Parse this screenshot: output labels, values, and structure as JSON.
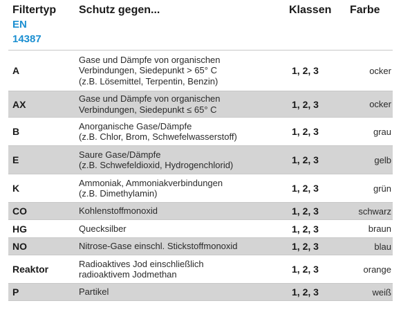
{
  "header": {
    "type": "Filtertyp",
    "standard_line1": "EN",
    "standard_line2": "14387",
    "protect": "Schutz gegen...",
    "classes": "Klassen",
    "color": "Farbe"
  },
  "rows": [
    {
      "type": "A",
      "protect": "Gase und Dämpfe von organischen\nVerbindungen, Siedepunkt > 65° C\n(z.B. Lösemittel, Terpentin, Benzin)",
      "classes": "1, 2, 3",
      "color": "ocker"
    },
    {
      "type": "AX",
      "protect": "Gase und Dämpfe von organischen\nVerbindungen, Siedepunkt ≤ 65° C",
      "classes": "1, 2, 3",
      "color": "ocker"
    },
    {
      "type": "B",
      "protect": "Anorganische Gase/Dämpfe\n(z.B. Chlor, Brom, Schwefelwasserstoff)",
      "classes": "1, 2, 3",
      "color": "grau"
    },
    {
      "type": "E",
      "protect": "Saure Gase/Dämpfe\n(z.B. Schwefeldioxid, Hydrogenchlorid)",
      "classes": "1, 2, 3",
      "color": "gelb"
    },
    {
      "type": "K",
      "protect": "Ammoniak, Ammoniakverbindungen\n(z.B. Dimethylamin)",
      "classes": "1, 2, 3",
      "color": "grün"
    },
    {
      "type": "CO",
      "protect": "Kohlenstoffmonoxid",
      "classes": "1, 2, 3",
      "color": "schwarz"
    },
    {
      "type": "HG",
      "protect": "Quecksilber",
      "classes": "1, 2, 3",
      "color": "braun"
    },
    {
      "type": "NO",
      "protect": "Nitrose-Gase einschl. Stickstoffmonoxid",
      "classes": "1, 2, 3",
      "color": "blau"
    },
    {
      "type": "Reaktor",
      "protect": "Radioaktives Jod einschließlich\nradioaktivem Jodmethan",
      "classes": "1, 2, 3",
      "color": "orange"
    },
    {
      "type": "P",
      "protect": "Partikel",
      "classes": "1, 2, 3",
      "color": "weiß"
    }
  ],
  "colors": {
    "accent": "#1b8fd1",
    "shade": "#d4d4d4",
    "rule": "#c8c8c8"
  }
}
